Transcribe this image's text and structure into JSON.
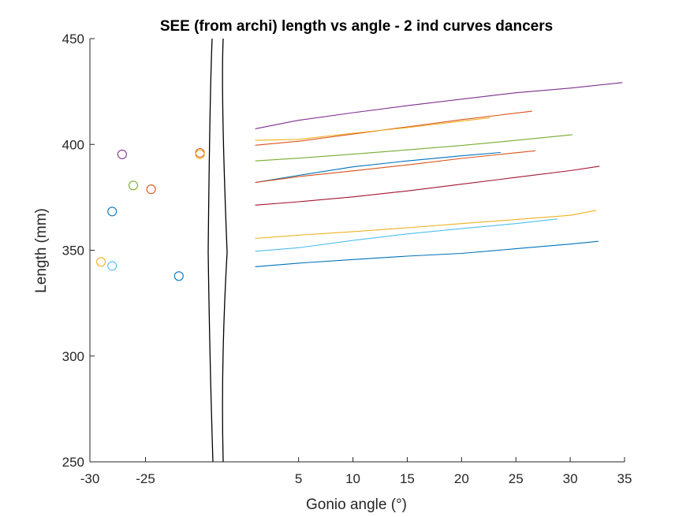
{
  "chart_data": {
    "type": "line",
    "title": "SEE (from archi) length vs angle - 2 ind curves dancers",
    "xlabel": "Gonio angle (°)",
    "ylabel": "Length (mm)",
    "ylim": [
      250,
      450
    ],
    "x_ticks_left": [
      "-30",
      "-25"
    ],
    "x_ticks_right": [
      "5",
      "10",
      "15",
      "20",
      "25",
      "30",
      "35"
    ],
    "y_ticks": [
      "250",
      "300",
      "350",
      "400",
      "450"
    ],
    "broken_x_axis": true,
    "left_segment_xlim": [
      -30,
      -20
    ],
    "right_segment_xlim": [
      -1,
      35
    ],
    "grid": false,
    "legend": "none",
    "colors": [
      "#0072BD",
      "#D95319",
      "#EDB120",
      "#7E2F8E",
      "#77AC30",
      "#4DBEEE",
      "#A2142F"
    ],
    "scatter": [
      {
        "x": -28.0,
        "y": 368.3,
        "color": "#0072BD"
      },
      {
        "x": -22.0,
        "y": 337.8,
        "color": "#0072BD"
      },
      {
        "x": -24.5,
        "y": 378.8,
        "color": "#D95319"
      },
      {
        "x": -20.1,
        "y": 396.0,
        "color": "#D95319"
      },
      {
        "x": -29.0,
        "y": 344.5,
        "color": "#EDB120"
      },
      {
        "x": -20.1,
        "y": 395.3,
        "color": "#EDB120"
      },
      {
        "x": -27.1,
        "y": 395.3,
        "color": "#7E2F8E"
      },
      {
        "x": -26.1,
        "y": 380.6,
        "color": "#77AC30"
      },
      {
        "x": -28.0,
        "y": 342.6,
        "color": "#4DBEEE"
      }
    ],
    "series": [
      {
        "color": "#0072BD",
        "x": [
          1,
          5,
          10,
          15,
          20,
          25,
          30,
          32.6
        ],
        "y": [
          342.2,
          343.9,
          345.6,
          347.2,
          348.5,
          350.7,
          352.9,
          354.2
        ]
      },
      {
        "color": "#0072BD",
        "x": [
          1,
          5,
          10,
          15,
          20,
          23.6
        ],
        "y": [
          382.0,
          385.4,
          389.4,
          392.2,
          394.6,
          396.2
        ]
      },
      {
        "color": "#D95319",
        "x": [
          1,
          5,
          10,
          15,
          20,
          26.8
        ],
        "y": [
          382.0,
          384.8,
          387.5,
          390.3,
          393.4,
          397.0
        ]
      },
      {
        "color": "#D95319",
        "x": [
          1,
          5,
          10,
          15,
          20,
          26.5
        ],
        "y": [
          399.6,
          401.5,
          404.9,
          408.3,
          411.7,
          415.7
        ]
      },
      {
        "color": "#EDB120",
        "x": [
          1,
          5,
          10,
          15,
          20,
          22.6
        ],
        "y": [
          401.9,
          402.4,
          405.3,
          407.9,
          411.0,
          412.6
        ]
      },
      {
        "color": "#EDB120",
        "x": [
          1,
          5,
          10,
          15,
          20,
          25,
          30,
          32.4
        ],
        "y": [
          355.6,
          357.1,
          358.8,
          360.6,
          362.6,
          364.5,
          366.5,
          368.9
        ]
      },
      {
        "color": "#7E2F8E",
        "x": [
          1,
          5,
          10,
          15,
          20,
          25,
          30,
          34.8
        ],
        "y": [
          407.4,
          411.4,
          415.0,
          418.3,
          421.4,
          424.4,
          426.6,
          429.2
        ]
      },
      {
        "color": "#77AC30",
        "x": [
          1,
          5,
          10,
          15,
          20,
          25,
          30.2
        ],
        "y": [
          392.2,
          393.5,
          395.4,
          397.4,
          399.5,
          401.9,
          404.6
        ]
      },
      {
        "color": "#4DBEEE",
        "x": [
          1,
          5,
          10,
          15,
          20,
          25,
          28.8
        ],
        "y": [
          349.5,
          351.2,
          354.6,
          357.7,
          360.2,
          362.6,
          364.8
        ]
      },
      {
        "color": "#A2142F",
        "x": [
          1,
          5,
          10,
          15,
          20,
          25,
          30,
          32.7
        ],
        "y": [
          371.3,
          372.9,
          375.2,
          378.0,
          381.2,
          384.4,
          387.6,
          389.7
        ]
      }
    ]
  }
}
